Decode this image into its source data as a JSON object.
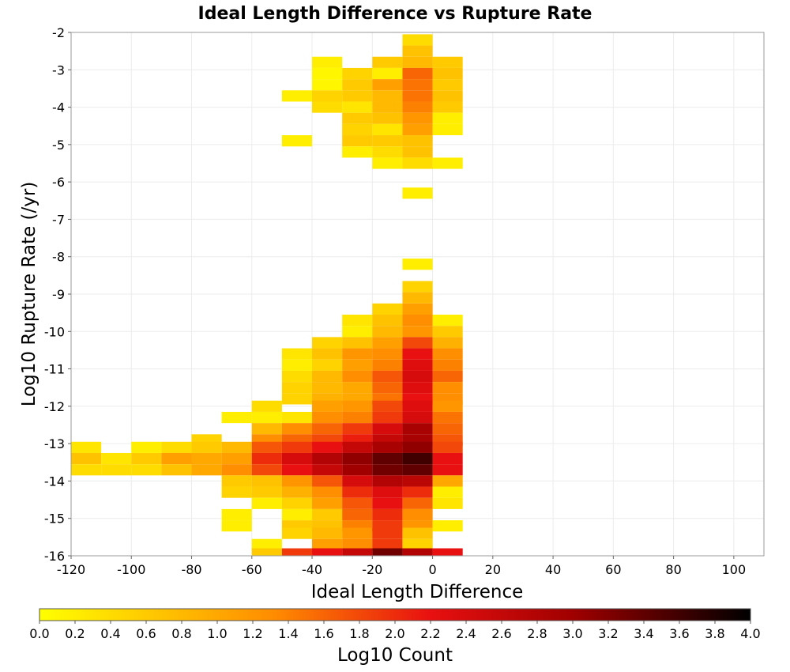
{
  "chart_data": {
    "type": "heatmap",
    "title": "Ideal Length Difference vs Rupture Rate",
    "xlabel": "Ideal Length Difference",
    "ylabel": "Log10 Rupture Rate (/yr)",
    "xlim": [
      -120,
      110
    ],
    "ylim": [
      -16,
      -2
    ],
    "x_ticks": [
      -120,
      -100,
      -80,
      -60,
      -40,
      -20,
      0,
      20,
      40,
      60,
      80,
      100
    ],
    "y_ticks": [
      -16,
      -15,
      -14,
      -13,
      -12,
      -11,
      -10,
      -9,
      -8,
      -7,
      -6,
      -5,
      -4,
      -3,
      -2
    ],
    "grid": true,
    "bin_width_x": 10,
    "bin_height_y": 0.3,
    "colorbar": {
      "label": "Log10 Count",
      "min": 0.0,
      "max": 4.0,
      "ticks": [
        "0.0",
        "0.2",
        "0.4",
        "0.6",
        "0.8",
        "1.0",
        "1.2",
        "1.4",
        "1.6",
        "1.8",
        "2.0",
        "2.2",
        "2.4",
        "2.6",
        "2.8",
        "3.0",
        "3.2",
        "3.4",
        "3.6",
        "3.8",
        "4.0"
      ],
      "colors": [
        "#ffff00",
        "#ff8c00",
        "#e81010",
        "#000000"
      ]
    },
    "cells": [
      {
        "x": -5,
        "y": -2.2,
        "v": 0.4
      },
      {
        "x": -5,
        "y": -2.5,
        "v": 0.7
      },
      {
        "x": -35,
        "y": -2.8,
        "v": 0.2
      },
      {
        "x": -15,
        "y": -2.8,
        "v": 0.6
      },
      {
        "x": -5,
        "y": -2.8,
        "v": 0.8
      },
      {
        "x": 5,
        "y": -2.8,
        "v": 0.6
      },
      {
        "x": -35,
        "y": -3.1,
        "v": 0.1
      },
      {
        "x": -25,
        "y": -3.1,
        "v": 0.5
      },
      {
        "x": -15,
        "y": -3.1,
        "v": 0.2
      },
      {
        "x": -5,
        "y": -3.1,
        "v": 1.6
      },
      {
        "x": 5,
        "y": -3.1,
        "v": 0.7
      },
      {
        "x": -35,
        "y": -3.4,
        "v": 0.1
      },
      {
        "x": -25,
        "y": -3.4,
        "v": 0.6
      },
      {
        "x": -15,
        "y": -3.4,
        "v": 1.1
      },
      {
        "x": -5,
        "y": -3.4,
        "v": 1.5
      },
      {
        "x": 5,
        "y": -3.4,
        "v": 0.6
      },
      {
        "x": -45,
        "y": -3.7,
        "v": 0.2
      },
      {
        "x": -35,
        "y": -3.7,
        "v": 0.5
      },
      {
        "x": -25,
        "y": -3.7,
        "v": 0.6
      },
      {
        "x": -15,
        "y": -3.7,
        "v": 0.8
      },
      {
        "x": -5,
        "y": -3.7,
        "v": 1.5
      },
      {
        "x": 5,
        "y": -3.7,
        "v": 0.7
      },
      {
        "x": -35,
        "y": -4.0,
        "v": 0.4
      },
      {
        "x": -25,
        "y": -4.0,
        "v": 0.3
      },
      {
        "x": -15,
        "y": -4.0,
        "v": 0.8
      },
      {
        "x": -5,
        "y": -4.0,
        "v": 1.4
      },
      {
        "x": 5,
        "y": -4.0,
        "v": 0.6
      },
      {
        "x": -25,
        "y": -4.3,
        "v": 0.6
      },
      {
        "x": -15,
        "y": -4.3,
        "v": 0.7
      },
      {
        "x": -5,
        "y": -4.3,
        "v": 1.2
      },
      {
        "x": 5,
        "y": -4.3,
        "v": 0.2
      },
      {
        "x": -25,
        "y": -4.6,
        "v": 0.5
      },
      {
        "x": -15,
        "y": -4.6,
        "v": 0.3
      },
      {
        "x": -5,
        "y": -4.6,
        "v": 1.1
      },
      {
        "x": 5,
        "y": -4.6,
        "v": 0.2
      },
      {
        "x": -45,
        "y": -4.9,
        "v": 0.2
      },
      {
        "x": -25,
        "y": -4.9,
        "v": 0.6
      },
      {
        "x": -15,
        "y": -4.9,
        "v": 0.6
      },
      {
        "x": -5,
        "y": -4.9,
        "v": 0.7
      },
      {
        "x": -25,
        "y": -5.2,
        "v": 0.2
      },
      {
        "x": -15,
        "y": -5.2,
        "v": 0.4
      },
      {
        "x": -5,
        "y": -5.2,
        "v": 0.7
      },
      {
        "x": -15,
        "y": -5.5,
        "v": 0.2
      },
      {
        "x": -5,
        "y": -5.5,
        "v": 0.4
      },
      {
        "x": 5,
        "y": -5.5,
        "v": 0.2
      },
      {
        "x": -5,
        "y": -6.3,
        "v": 0.2
      },
      {
        "x": -5,
        "y": -8.2,
        "v": 0.2
      },
      {
        "x": -5,
        "y": -8.8,
        "v": 0.5
      },
      {
        "x": -5,
        "y": -9.1,
        "v": 0.8
      },
      {
        "x": -15,
        "y": -9.4,
        "v": 0.5
      },
      {
        "x": -5,
        "y": -9.4,
        "v": 1.1
      },
      {
        "x": -25,
        "y": -9.7,
        "v": 0.3
      },
      {
        "x": -15,
        "y": -9.7,
        "v": 0.7
      },
      {
        "x": -5,
        "y": -9.7,
        "v": 1.3
      },
      {
        "x": 5,
        "y": -9.7,
        "v": 0.2
      },
      {
        "x": -25,
        "y": -10.0,
        "v": 0.2
      },
      {
        "x": -15,
        "y": -10.0,
        "v": 0.8
      },
      {
        "x": -5,
        "y": -10.0,
        "v": 1.2
      },
      {
        "x": 5,
        "y": -10.0,
        "v": 0.6
      },
      {
        "x": -35,
        "y": -10.3,
        "v": 0.5
      },
      {
        "x": -25,
        "y": -10.3,
        "v": 0.7
      },
      {
        "x": -15,
        "y": -10.3,
        "v": 1.1
      },
      {
        "x": -5,
        "y": -10.3,
        "v": 1.8
      },
      {
        "x": 5,
        "y": -10.3,
        "v": 0.9
      },
      {
        "x": -45,
        "y": -10.6,
        "v": 0.3
      },
      {
        "x": -35,
        "y": -10.6,
        "v": 0.7
      },
      {
        "x": -25,
        "y": -10.6,
        "v": 1.2
      },
      {
        "x": -15,
        "y": -10.6,
        "v": 1.3
      },
      {
        "x": -5,
        "y": -10.6,
        "v": 2.2
      },
      {
        "x": 5,
        "y": -10.6,
        "v": 1.3
      },
      {
        "x": -45,
        "y": -10.9,
        "v": 0.2
      },
      {
        "x": -35,
        "y": -10.9,
        "v": 0.5
      },
      {
        "x": -25,
        "y": -10.9,
        "v": 1.1
      },
      {
        "x": -15,
        "y": -10.9,
        "v": 1.4
      },
      {
        "x": -5,
        "y": -10.9,
        "v": 2.3
      },
      {
        "x": 5,
        "y": -10.9,
        "v": 1.4
      },
      {
        "x": -45,
        "y": -11.2,
        "v": 0.4
      },
      {
        "x": -35,
        "y": -11.2,
        "v": 0.8
      },
      {
        "x": -25,
        "y": -11.2,
        "v": 1.3
      },
      {
        "x": -15,
        "y": -11.2,
        "v": 1.7
      },
      {
        "x": -5,
        "y": -11.2,
        "v": 2.4
      },
      {
        "x": 5,
        "y": -11.2,
        "v": 1.6
      },
      {
        "x": -45,
        "y": -11.5,
        "v": 0.5
      },
      {
        "x": -35,
        "y": -11.5,
        "v": 0.8
      },
      {
        "x": -25,
        "y": -11.5,
        "v": 1.0
      },
      {
        "x": -15,
        "y": -11.5,
        "v": 1.6
      },
      {
        "x": -5,
        "y": -11.5,
        "v": 2.3
      },
      {
        "x": 5,
        "y": -11.5,
        "v": 1.3
      },
      {
        "x": -45,
        "y": -11.8,
        "v": 0.5
      },
      {
        "x": -35,
        "y": -11.8,
        "v": 0.9
      },
      {
        "x": -25,
        "y": -11.8,
        "v": 1.0
      },
      {
        "x": -15,
        "y": -11.8,
        "v": 1.5
      },
      {
        "x": -5,
        "y": -11.8,
        "v": 2.2
      },
      {
        "x": 5,
        "y": -11.8,
        "v": 1.3
      },
      {
        "x": -55,
        "y": -12.0,
        "v": 0.4
      },
      {
        "x": -35,
        "y": -12.0,
        "v": 1.1
      },
      {
        "x": -25,
        "y": -12.0,
        "v": 1.2
      },
      {
        "x": -15,
        "y": -12.0,
        "v": 1.8
      },
      {
        "x": -5,
        "y": -12.0,
        "v": 2.3
      },
      {
        "x": 5,
        "y": -12.0,
        "v": 1.2
      },
      {
        "x": -65,
        "y": -12.3,
        "v": 0.2
      },
      {
        "x": -55,
        "y": -12.3,
        "v": 0.2
      },
      {
        "x": -45,
        "y": -12.3,
        "v": 0.3
      },
      {
        "x": -35,
        "y": -12.3,
        "v": 1.3
      },
      {
        "x": -25,
        "y": -12.3,
        "v": 1.4
      },
      {
        "x": -15,
        "y": -12.3,
        "v": 1.9
      },
      {
        "x": -5,
        "y": -12.3,
        "v": 2.4
      },
      {
        "x": 5,
        "y": -12.3,
        "v": 1.5
      },
      {
        "x": -55,
        "y": -12.6,
        "v": 0.8
      },
      {
        "x": -45,
        "y": -12.6,
        "v": 1.3
      },
      {
        "x": -35,
        "y": -12.6,
        "v": 1.6
      },
      {
        "x": -25,
        "y": -12.6,
        "v": 1.9
      },
      {
        "x": -15,
        "y": -12.6,
        "v": 2.4
      },
      {
        "x": -5,
        "y": -12.6,
        "v": 2.9
      },
      {
        "x": 5,
        "y": -12.6,
        "v": 1.6
      },
      {
        "x": -75,
        "y": -12.9,
        "v": 0.5
      },
      {
        "x": -55,
        "y": -12.9,
        "v": 1.3
      },
      {
        "x": -45,
        "y": -12.9,
        "v": 1.6
      },
      {
        "x": -35,
        "y": -12.9,
        "v": 1.8
      },
      {
        "x": -25,
        "y": -12.9,
        "v": 2.1
      },
      {
        "x": -15,
        "y": -12.9,
        "v": 2.6
      },
      {
        "x": -5,
        "y": -12.9,
        "v": 2.9
      },
      {
        "x": 5,
        "y": -12.9,
        "v": 1.7
      },
      {
        "x": -115,
        "y": -13.1,
        "v": 0.3
      },
      {
        "x": -95,
        "y": -13.1,
        "v": 0.2
      },
      {
        "x": -85,
        "y": -13.1,
        "v": 0.4
      },
      {
        "x": -75,
        "y": -13.1,
        "v": 0.6
      },
      {
        "x": -65,
        "y": -13.1,
        "v": 0.8
      },
      {
        "x": -55,
        "y": -13.1,
        "v": 1.7
      },
      {
        "x": -45,
        "y": -13.1,
        "v": 1.9
      },
      {
        "x": -35,
        "y": -13.1,
        "v": 2.2
      },
      {
        "x": -25,
        "y": -13.1,
        "v": 2.6
      },
      {
        "x": -15,
        "y": -13.1,
        "v": 2.9
      },
      {
        "x": -5,
        "y": -13.1,
        "v": 3.1
      },
      {
        "x": 5,
        "y": -13.1,
        "v": 1.8
      },
      {
        "x": -115,
        "y": -13.4,
        "v": 0.7
      },
      {
        "x": -105,
        "y": -13.4,
        "v": 0.3
      },
      {
        "x": -95,
        "y": -13.4,
        "v": 0.6
      },
      {
        "x": -85,
        "y": -13.4,
        "v": 1.1
      },
      {
        "x": -75,
        "y": -13.4,
        "v": 1.0
      },
      {
        "x": -65,
        "y": -13.4,
        "v": 1.1
      },
      {
        "x": -55,
        "y": -13.4,
        "v": 2.0
      },
      {
        "x": -45,
        "y": -13.4,
        "v": 2.4
      },
      {
        "x": -35,
        "y": -13.4,
        "v": 2.8
      },
      {
        "x": -25,
        "y": -13.4,
        "v": 3.1
      },
      {
        "x": -15,
        "y": -13.4,
        "v": 3.4
      },
      {
        "x": -5,
        "y": -13.4,
        "v": 3.6
      },
      {
        "x": 5,
        "y": -13.4,
        "v": 2.2
      },
      {
        "x": -115,
        "y": -13.7,
        "v": 0.4
      },
      {
        "x": -105,
        "y": -13.7,
        "v": 0.4
      },
      {
        "x": -95,
        "y": -13.7,
        "v": 0.4
      },
      {
        "x": -85,
        "y": -13.7,
        "v": 0.7
      },
      {
        "x": -75,
        "y": -13.7,
        "v": 1.0
      },
      {
        "x": -65,
        "y": -13.7,
        "v": 1.3
      },
      {
        "x": -55,
        "y": -13.7,
        "v": 1.8
      },
      {
        "x": -45,
        "y": -13.7,
        "v": 2.2
      },
      {
        "x": -35,
        "y": -13.7,
        "v": 2.6
      },
      {
        "x": -25,
        "y": -13.7,
        "v": 3.0
      },
      {
        "x": -15,
        "y": -13.7,
        "v": 3.3
      },
      {
        "x": -5,
        "y": -13.7,
        "v": 3.4
      },
      {
        "x": 5,
        "y": -13.7,
        "v": 2.2
      },
      {
        "x": -65,
        "y": -14.0,
        "v": 0.6
      },
      {
        "x": -55,
        "y": -14.0,
        "v": 0.7
      },
      {
        "x": -45,
        "y": -14.0,
        "v": 1.2
      },
      {
        "x": -35,
        "y": -14.0,
        "v": 1.7
      },
      {
        "x": -25,
        "y": -14.0,
        "v": 2.4
      },
      {
        "x": -15,
        "y": -14.0,
        "v": 2.8
      },
      {
        "x": -5,
        "y": -14.0,
        "v": 2.7
      },
      {
        "x": 5,
        "y": -14.0,
        "v": 1.0
      },
      {
        "x": -65,
        "y": -14.3,
        "v": 0.5
      },
      {
        "x": -55,
        "y": -14.3,
        "v": 0.6
      },
      {
        "x": -45,
        "y": -14.3,
        "v": 0.9
      },
      {
        "x": -35,
        "y": -14.3,
        "v": 1.3
      },
      {
        "x": -25,
        "y": -14.3,
        "v": 2.0
      },
      {
        "x": -15,
        "y": -14.3,
        "v": 2.3
      },
      {
        "x": -5,
        "y": -14.3,
        "v": 2.0
      },
      {
        "x": 5,
        "y": -14.3,
        "v": 0.2
      },
      {
        "x": -55,
        "y": -14.6,
        "v": 0.2
      },
      {
        "x": -45,
        "y": -14.6,
        "v": 0.5
      },
      {
        "x": -35,
        "y": -14.6,
        "v": 1.1
      },
      {
        "x": -25,
        "y": -14.6,
        "v": 1.7
      },
      {
        "x": -15,
        "y": -14.6,
        "v": 2.2
      },
      {
        "x": -5,
        "y": -14.6,
        "v": 1.6
      },
      {
        "x": 5,
        "y": -14.6,
        "v": 0.3
      },
      {
        "x": -65,
        "y": -14.9,
        "v": 0.2
      },
      {
        "x": -45,
        "y": -14.9,
        "v": 0.2
      },
      {
        "x": -35,
        "y": -14.9,
        "v": 0.6
      },
      {
        "x": -25,
        "y": -14.9,
        "v": 1.6
      },
      {
        "x": -15,
        "y": -14.9,
        "v": 2.0
      },
      {
        "x": -5,
        "y": -14.9,
        "v": 1.3
      },
      {
        "x": -65,
        "y": -15.2,
        "v": 0.2
      },
      {
        "x": -45,
        "y": -15.2,
        "v": 0.6
      },
      {
        "x": -35,
        "y": -15.2,
        "v": 0.7
      },
      {
        "x": -25,
        "y": -15.2,
        "v": 1.4
      },
      {
        "x": -15,
        "y": -15.2,
        "v": 1.9
      },
      {
        "x": -5,
        "y": -15.2,
        "v": 1.2
      },
      {
        "x": 5,
        "y": -15.2,
        "v": 0.2
      },
      {
        "x": -45,
        "y": -15.4,
        "v": 0.5
      },
      {
        "x": -35,
        "y": -15.4,
        "v": 0.8
      },
      {
        "x": -25,
        "y": -15.4,
        "v": 1.2
      },
      {
        "x": -15,
        "y": -15.4,
        "v": 1.9
      },
      {
        "x": -5,
        "y": -15.4,
        "v": 0.7
      },
      {
        "x": -55,
        "y": -15.7,
        "v": 0.2
      },
      {
        "x": -35,
        "y": -15.7,
        "v": 1.1
      },
      {
        "x": -25,
        "y": -15.7,
        "v": 1.3
      },
      {
        "x": -15,
        "y": -15.7,
        "v": 1.9
      },
      {
        "x": -5,
        "y": -15.7,
        "v": 0.5
      },
      {
        "x": -55,
        "y": -15.95,
        "v": 0.6
      },
      {
        "x": -45,
        "y": -15.95,
        "v": 1.9
      },
      {
        "x": -35,
        "y": -15.95,
        "v": 2.2
      },
      {
        "x": -25,
        "y": -15.95,
        "v": 2.6
      },
      {
        "x": -15,
        "y": -15.95,
        "v": 3.3
      },
      {
        "x": -5,
        "y": -15.95,
        "v": 2.8
      },
      {
        "x": 5,
        "y": -15.95,
        "v": 2.2
      }
    ]
  }
}
